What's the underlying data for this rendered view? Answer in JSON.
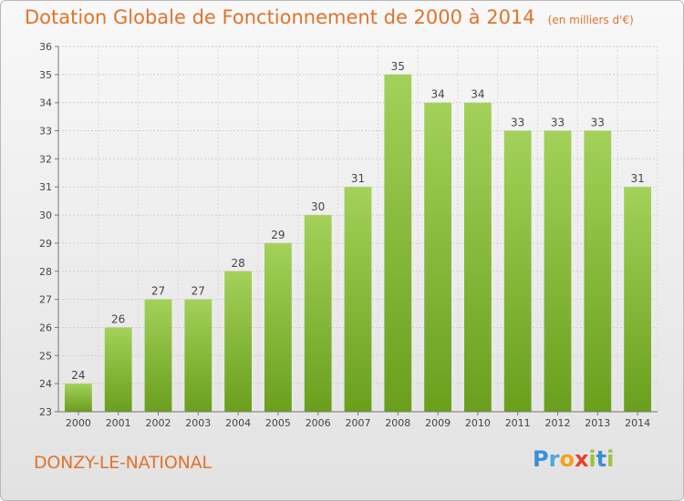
{
  "header": {
    "title": "Dotation Globale de Fonctionnement de 2000 à 2014",
    "unit": "(en milliers d'€)"
  },
  "footer": {
    "commune": "DONZY-LE-NATIONAL",
    "brand": {
      "letters": [
        "P",
        "r",
        "o",
        "x",
        "i",
        "t",
        "i"
      ],
      "colors": [
        "#3b8fd4",
        "#4aa8e0",
        "#f2a31c",
        "#e8402a",
        "#9bc43a",
        "#3b8fd4",
        "#9bc43a"
      ]
    }
  },
  "chart_data": {
    "type": "bar",
    "title": "Dotation Globale de Fonctionnement de 2000 à 2014",
    "xlabel": "",
    "ylabel": "",
    "categories": [
      "2000",
      "2001",
      "2002",
      "2003",
      "2004",
      "2005",
      "2006",
      "2007",
      "2008",
      "2009",
      "2010",
      "2011",
      "2012",
      "2013",
      "2014"
    ],
    "values": [
      24,
      26,
      27,
      27,
      28,
      29,
      30,
      31,
      35,
      34,
      34,
      33,
      33,
      33,
      31
    ],
    "ylim": [
      23,
      36
    ],
    "yticks": [
      23,
      24,
      25,
      26,
      27,
      28,
      29,
      30,
      31,
      32,
      33,
      34,
      35,
      36
    ],
    "grid": true,
    "bar_color_top": "#a3d15a",
    "bar_color_bottom": "#6a9f1c"
  }
}
